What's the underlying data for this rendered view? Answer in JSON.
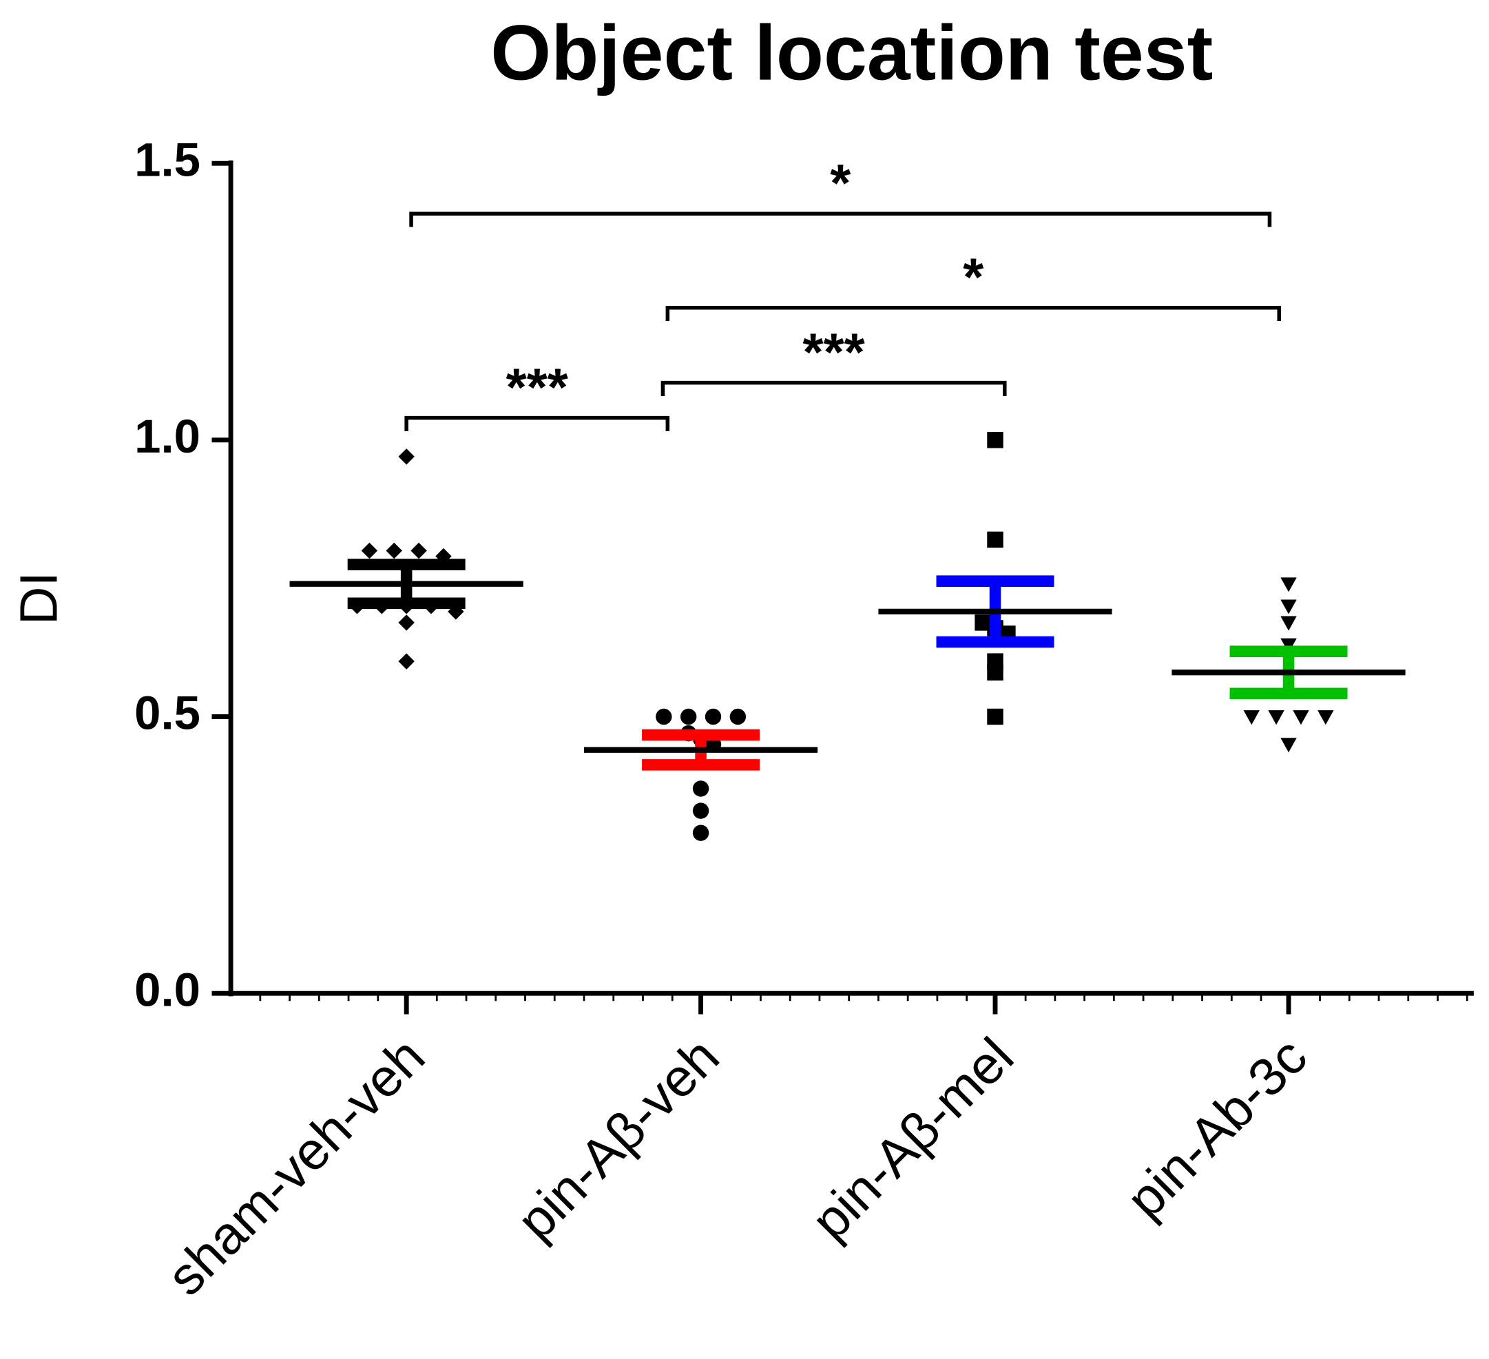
{
  "chart_data": {
    "type": "dotplot",
    "title": "Object location test",
    "y_label": "DI",
    "categories": [
      "sham-veh-veh",
      "pin-Aβ-veh",
      "pin-Aβ-mel",
      "pin-Ab-3c"
    ],
    "values": [
      [
        0.97,
        0.8,
        0.8,
        0.8,
        0.79,
        0.7,
        0.7,
        0.7,
        0.7,
        0.69,
        0.67,
        0.6
      ],
      [
        0.5,
        0.5,
        0.5,
        0.5,
        0.47,
        0.46,
        0.45,
        0.37,
        0.33,
        0.29
      ],
      [
        1.0,
        0.82,
        0.67,
        0.66,
        0.65,
        0.6,
        0.58,
        0.5
      ],
      [
        0.74,
        0.7,
        0.67,
        0.63,
        0.5,
        0.5,
        0.5,
        0.5,
        0.45
      ]
    ],
    "markers": [
      "diamond",
      "circle",
      "square",
      "triangle-down"
    ],
    "point_color": "#000000",
    "means": [
      0.74,
      0.44,
      0.69,
      0.58
    ],
    "sems": [
      0.035,
      0.027,
      0.055,
      0.038
    ],
    "sem_colors": [
      "#000000",
      "#ff0000",
      "#0000ff",
      "#00c000"
    ],
    "ylim": [
      0,
      1.5
    ],
    "yticks": [
      {
        "value": 0,
        "label": "0.0"
      },
      {
        "value": 0.5,
        "label": "0.5"
      },
      {
        "value": 1,
        "label": "1.0"
      },
      1.5
    ],
    "annotations": [
      {
        "from": 0,
        "to": 1,
        "label": "***"
      },
      {
        "from": 1,
        "to": 2,
        "label": "***"
      },
      {
        "from": 1,
        "to": 3,
        "label": "*"
      },
      {
        "from": 0,
        "to": 3,
        "label": "*"
      }
    ]
  }
}
